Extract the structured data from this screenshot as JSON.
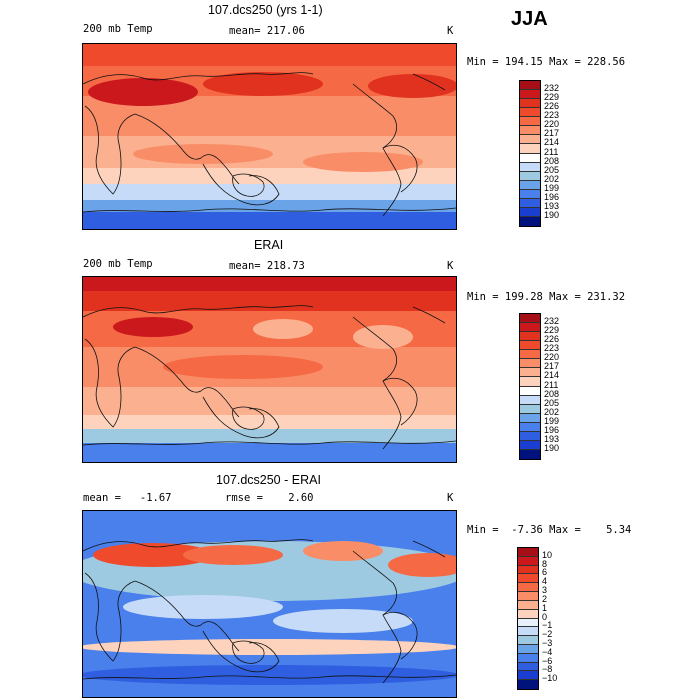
{
  "season": "JJA",
  "panels": [
    {
      "title": "107.dcs250 (yrs 1-1)",
      "left_label": "200 mb Temp",
      "center_label": "mean= 217.06",
      "right_label": "K",
      "minmax": "Min = 194.15 Max = 228.56",
      "levels": [
        "232",
        "229",
        "226",
        "223",
        "220",
        "217",
        "214",
        "211",
        "208",
        "205",
        "202",
        "199",
        "196",
        "193",
        "190"
      ],
      "colors": [
        "#a50f15",
        "#cb181d",
        "#e0321e",
        "#ef4a2b",
        "#f56a44",
        "#f98d67",
        "#fbb090",
        "#fdd3bd",
        "#ffffff",
        "#c6dbf7",
        "#9ecae1",
        "#6ba3e8",
        "#4a80ec",
        "#2f5fe0",
        "#1a3fd0",
        "#00137d"
      ],
      "pattern": "model"
    },
    {
      "title": "ERAI",
      "left_label": "200 mb Temp",
      "center_label": "mean= 218.73",
      "right_label": "K",
      "minmax": "Min = 199.28 Max = 231.32",
      "levels": [
        "232",
        "229",
        "226",
        "223",
        "220",
        "217",
        "214",
        "211",
        "208",
        "205",
        "202",
        "199",
        "196",
        "193",
        "190"
      ],
      "colors": [
        "#a50f15",
        "#cb181d",
        "#e0321e",
        "#ef4a2b",
        "#f56a44",
        "#f98d67",
        "#fbb090",
        "#fdd3bd",
        "#ffffff",
        "#c6dbf7",
        "#9ecae1",
        "#6ba3e8",
        "#4a80ec",
        "#2f5fe0",
        "#1a3fd0",
        "#00137d"
      ],
      "pattern": "obs"
    },
    {
      "title": "107.dcs250 - ERAI",
      "left_label": "mean =   -1.67",
      "center_label": "rmse =    2.60",
      "right_label": "K",
      "minmax": "Min =  -7.36 Max =    5.34",
      "levels": [
        "10",
        "8",
        "6",
        "4",
        "3",
        "2",
        "1",
        "0",
        "−1",
        "−2",
        "−3",
        "−4",
        "−6",
        "−8",
        "−10"
      ],
      "colors": [
        "#a50f15",
        "#cb181d",
        "#e0321e",
        "#ef4a2b",
        "#f56a44",
        "#f98d67",
        "#fbb090",
        "#fdd3bd",
        "#e8f0fb",
        "#c6dbf7",
        "#9ecae1",
        "#6ba3e8",
        "#4a80ec",
        "#2f5fe0",
        "#1a3fd0",
        "#00137d"
      ],
      "pattern": "diff"
    }
  ]
}
